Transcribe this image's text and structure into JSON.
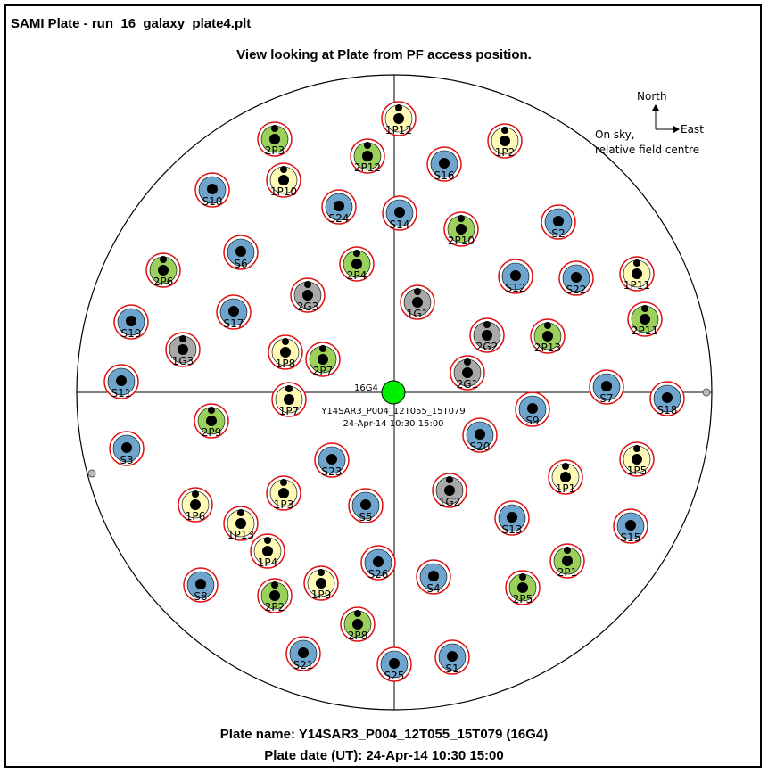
{
  "window_title": "SAMI Plate - run_16_galaxy_plate4.plt",
  "view_title": "View looking at Plate from PF access position.",
  "compass": {
    "north": "North",
    "east": "East",
    "note_line1": "On sky,",
    "note_line2": "relative field centre"
  },
  "centre": {
    "guide_label": "16G4",
    "plate_line": "Y14SAR3_P004_12T055_15T079",
    "date_line": "24-Apr-14 10:30 15:00"
  },
  "footer": {
    "plate_name": "Plate name: Y14SAR3_P004_12T055_15T079 (16G4)",
    "plate_date": "Plate date (UT): 24-Apr-14 10:30 15:00"
  },
  "colors": {
    "sky": "#6fa4cc",
    "yellow": "#fffbb6",
    "green": "#9bd15a",
    "gray": "#a8a8a8",
    "ring": "#e01010",
    "centre": "#00ee00"
  },
  "fibres": [
    {
      "label": "1P12",
      "kind": "yellow"
    },
    {
      "label": "2P3",
      "kind": "green"
    },
    {
      "label": "2P12",
      "kind": "green"
    },
    {
      "label": "1P2",
      "kind": "yellow"
    },
    {
      "label": "S16",
      "kind": "sky"
    },
    {
      "label": "1P10",
      "kind": "yellow"
    },
    {
      "label": "S10",
      "kind": "sky"
    },
    {
      "label": "S24",
      "kind": "sky"
    },
    {
      "label": "S14",
      "kind": "sky"
    },
    {
      "label": "2P10",
      "kind": "green"
    },
    {
      "label": "S2",
      "kind": "sky"
    },
    {
      "label": "S6",
      "kind": "sky"
    },
    {
      "label": "2P4",
      "kind": "green"
    },
    {
      "label": "2P6",
      "kind": "green"
    },
    {
      "label": "S12",
      "kind": "sky"
    },
    {
      "label": "S22",
      "kind": "sky"
    },
    {
      "label": "1P11",
      "kind": "yellow"
    },
    {
      "label": "2G3",
      "kind": "gray"
    },
    {
      "label": "1G1",
      "kind": "gray"
    },
    {
      "label": "S19",
      "kind": "sky"
    },
    {
      "label": "S17",
      "kind": "sky"
    },
    {
      "label": "2P11",
      "kind": "green"
    },
    {
      "label": "2G2",
      "kind": "gray"
    },
    {
      "label": "2P13",
      "kind": "green"
    },
    {
      "label": "1G3",
      "kind": "gray"
    },
    {
      "label": "1P8",
      "kind": "yellow"
    },
    {
      "label": "2P7",
      "kind": "green"
    },
    {
      "label": "2G1",
      "kind": "gray"
    },
    {
      "label": "S11",
      "kind": "sky"
    },
    {
      "label": "S7",
      "kind": "sky"
    },
    {
      "label": "S18",
      "kind": "sky"
    },
    {
      "label": "1P7",
      "kind": "yellow"
    },
    {
      "label": "S9",
      "kind": "sky"
    },
    {
      "label": "2P9",
      "kind": "green"
    },
    {
      "label": "S20",
      "kind": "sky"
    },
    {
      "label": "S3",
      "kind": "sky"
    },
    {
      "label": "1P5",
      "kind": "yellow"
    },
    {
      "label": "S23",
      "kind": "sky"
    },
    {
      "label": "1P1",
      "kind": "yellow"
    },
    {
      "label": "1G2",
      "kind": "gray"
    },
    {
      "label": "1P3",
      "kind": "yellow"
    },
    {
      "label": "1P6",
      "kind": "yellow"
    },
    {
      "label": "S5",
      "kind": "sky"
    },
    {
      "label": "S13",
      "kind": "sky"
    },
    {
      "label": "1P13",
      "kind": "yellow"
    },
    {
      "label": "S15",
      "kind": "sky"
    },
    {
      "label": "1P4",
      "kind": "yellow"
    },
    {
      "label": "2P1",
      "kind": "green"
    },
    {
      "label": "S26",
      "kind": "sky"
    },
    {
      "label": "S4",
      "kind": "sky"
    },
    {
      "label": "S8",
      "kind": "sky"
    },
    {
      "label": "2P2",
      "kind": "green"
    },
    {
      "label": "1P9",
      "kind": "yellow"
    },
    {
      "label": "2P5",
      "kind": "green"
    },
    {
      "label": "2P8",
      "kind": "green"
    },
    {
      "label": "S21",
      "kind": "sky"
    },
    {
      "label": "S1",
      "kind": "sky"
    },
    {
      "label": "S25",
      "kind": "sky"
    }
  ]
}
